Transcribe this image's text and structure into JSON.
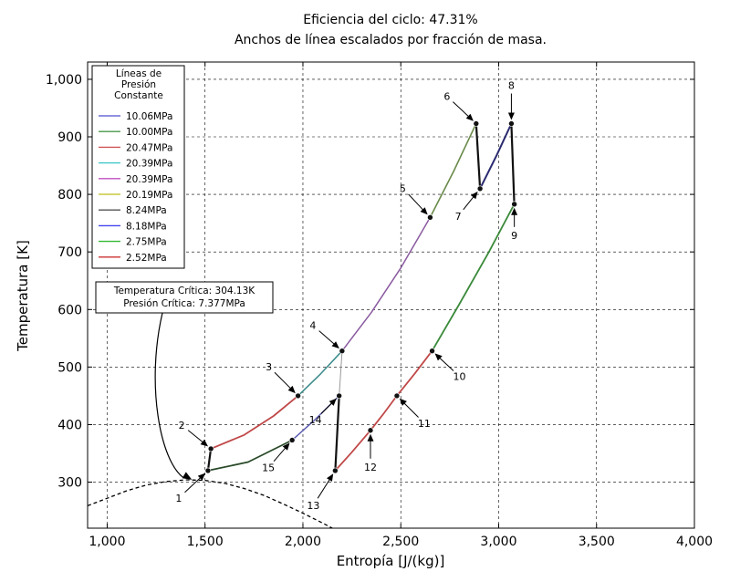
{
  "chart_data": {
    "type": "line",
    "title": "Eficiencia del ciclo: 47.31%",
    "subtitle": "Anchos de línea escalados por fracción de masa.",
    "xlabel": "Entropía [J/(kg)]",
    "ylabel": "Temperatura [K]",
    "xlim": [
      900,
      4000
    ],
    "ylim": [
      220,
      1030
    ],
    "xticks": [
      1000,
      1500,
      2000,
      2500,
      3000,
      3500,
      4000
    ],
    "xtick_labels": [
      "1,000",
      "1,500",
      "2,000",
      "2,500",
      "3,000",
      "3,500",
      "4,000"
    ],
    "yticks": [
      300,
      400,
      500,
      600,
      700,
      800,
      900,
      1000
    ],
    "ytick_labels": [
      "300",
      "400",
      "500",
      "600",
      "700",
      "800",
      "900",
      "1,000"
    ],
    "grid": true,
    "legend": {
      "title": [
        "Líneas de",
        "Presión",
        "Constante"
      ],
      "placement": "top-left",
      "entries": [
        {
          "label": "10.06MPa",
          "color": "#6b6bd8"
        },
        {
          "label": "10.00MPa",
          "color": "#4a9a4a"
        },
        {
          "label": "20.47MPa",
          "color": "#d05555"
        },
        {
          "label": "20.39MPa",
          "color": "#40c8c8"
        },
        {
          "label": "20.39MPa",
          "color": "#c050c0"
        },
        {
          "label": "20.19MPa",
          "color": "#c8c840"
        },
        {
          "label": "8.24MPa",
          "color": "#555555"
        },
        {
          "label": "8.18MPa",
          "color": "#4444ee"
        },
        {
          "label": "2.75MPa",
          "color": "#33bb33"
        },
        {
          "label": "2.52MPa",
          "color": "#cc3333"
        }
      ]
    },
    "critical_point": {
      "text_line1": "Temperatura Crítica: 304.13K",
      "text_line2": "Presión Crítica: 7.377MPa",
      "s": 1433,
      "T": 304.13
    },
    "states": [
      {
        "label": "1",
        "s": 1515,
        "T": 320
      },
      {
        "label": "2",
        "s": 1530,
        "T": 358
      },
      {
        "label": "3",
        "s": 1975,
        "T": 450
      },
      {
        "label": "4",
        "s": 2200,
        "T": 528
      },
      {
        "label": "5",
        "s": 2650,
        "T": 760
      },
      {
        "label": "6",
        "s": 2885,
        "T": 923
      },
      {
        "label": "7",
        "s": 2905,
        "T": 810
      },
      {
        "label": "8",
        "s": 3065,
        "T": 923
      },
      {
        "label": "9",
        "s": 3080,
        "T": 783
      },
      {
        "label": "10",
        "s": 2660,
        "T": 528
      },
      {
        "label": "11",
        "s": 2480,
        "T": 450
      },
      {
        "label": "12",
        "s": 2345,
        "T": 390
      },
      {
        "label": "13",
        "s": 2165,
        "T": 320
      },
      {
        "label": "14",
        "s": 2185,
        "T": 450
      },
      {
        "label": "15",
        "s": 1945,
        "T": 373
      }
    ],
    "series": [
      {
        "segment": "1-2",
        "color": "#111111",
        "width": 2.2,
        "points": [
          [
            1515,
            320
          ],
          [
            1530,
            358
          ]
        ]
      },
      {
        "segment": "2-3",
        "color": "#c04848",
        "width": 1.8,
        "points": [
          [
            1530,
            358
          ],
          [
            1700,
            382
          ],
          [
            1850,
            415
          ],
          [
            1975,
            450
          ]
        ]
      },
      {
        "segment": "3-4",
        "color": "#3a8a8a",
        "width": 1.5,
        "points": [
          [
            1975,
            450
          ],
          [
            2090,
            488
          ],
          [
            2200,
            528
          ]
        ]
      },
      {
        "segment": "4-5",
        "color": "#8a5aa0",
        "width": 1.5,
        "points": [
          [
            2200,
            528
          ],
          [
            2350,
            595
          ],
          [
            2500,
            672
          ],
          [
            2650,
            760
          ]
        ]
      },
      {
        "segment": "5-6",
        "color": "#6a8a4a",
        "width": 1.6,
        "points": [
          [
            2650,
            760
          ],
          [
            2770,
            840
          ],
          [
            2885,
            923
          ]
        ]
      },
      {
        "segment": "6-7",
        "color": "#111111",
        "width": 2.2,
        "points": [
          [
            2885,
            923
          ],
          [
            2905,
            810
          ]
        ]
      },
      {
        "segment": "7-8",
        "color": "#2a2a70",
        "width": 2.0,
        "points": [
          [
            2905,
            810
          ],
          [
            2990,
            868
          ],
          [
            3065,
            923
          ]
        ]
      },
      {
        "segment": "8-9",
        "color": "#111111",
        "width": 2.2,
        "points": [
          [
            3065,
            923
          ],
          [
            3080,
            783
          ]
        ]
      },
      {
        "segment": "9-10",
        "color": "#3a8a3a",
        "width": 1.8,
        "points": [
          [
            3080,
            783
          ],
          [
            2950,
            700
          ],
          [
            2800,
            610
          ],
          [
            2660,
            528
          ]
        ]
      },
      {
        "segment": "10-11",
        "color": "#c04848",
        "width": 1.8,
        "points": [
          [
            2660,
            528
          ],
          [
            2570,
            488
          ],
          [
            2480,
            450
          ]
        ]
      },
      {
        "segment": "11-12",
        "color": "#c04848",
        "width": 1.8,
        "points": [
          [
            2480,
            450
          ],
          [
            2410,
            418
          ],
          [
            2345,
            390
          ]
        ]
      },
      {
        "segment": "12-13",
        "color": "#c04848",
        "width": 1.8,
        "points": [
          [
            2345,
            390
          ],
          [
            2250,
            352
          ],
          [
            2165,
            320
          ]
        ]
      },
      {
        "segment": "13-14",
        "color": "#111111",
        "width": 2.2,
        "points": [
          [
            2165,
            320
          ],
          [
            2185,
            450
          ]
        ]
      },
      {
        "segment": "14-15",
        "color": "#5a5ab0",
        "width": 1.5,
        "points": [
          [
            2185,
            450
          ],
          [
            2060,
            408
          ],
          [
            1945,
            373
          ]
        ]
      },
      {
        "segment": "15-1",
        "color": "#2a4a2a",
        "width": 1.8,
        "points": [
          [
            1945,
            373
          ],
          [
            1720,
            335
          ],
          [
            1515,
            320
          ]
        ]
      },
      {
        "segment": "4-14",
        "color": "#999999",
        "width": 1.0,
        "points": [
          [
            2200,
            528
          ],
          [
            2185,
            450
          ]
        ]
      }
    ],
    "saturation_dome": {
      "points": [
        [
          900,
          259
        ],
        [
          1000,
          272
        ],
        [
          1100,
          285
        ],
        [
          1200,
          295
        ],
        [
          1300,
          301
        ],
        [
          1400,
          304
        ],
        [
          1500,
          303
        ],
        [
          1600,
          298
        ],
        [
          1700,
          289
        ],
        [
          1800,
          277
        ],
        [
          1900,
          262
        ],
        [
          2000,
          246
        ],
        [
          2100,
          229
        ],
        [
          2150,
          220
        ]
      ]
    }
  }
}
